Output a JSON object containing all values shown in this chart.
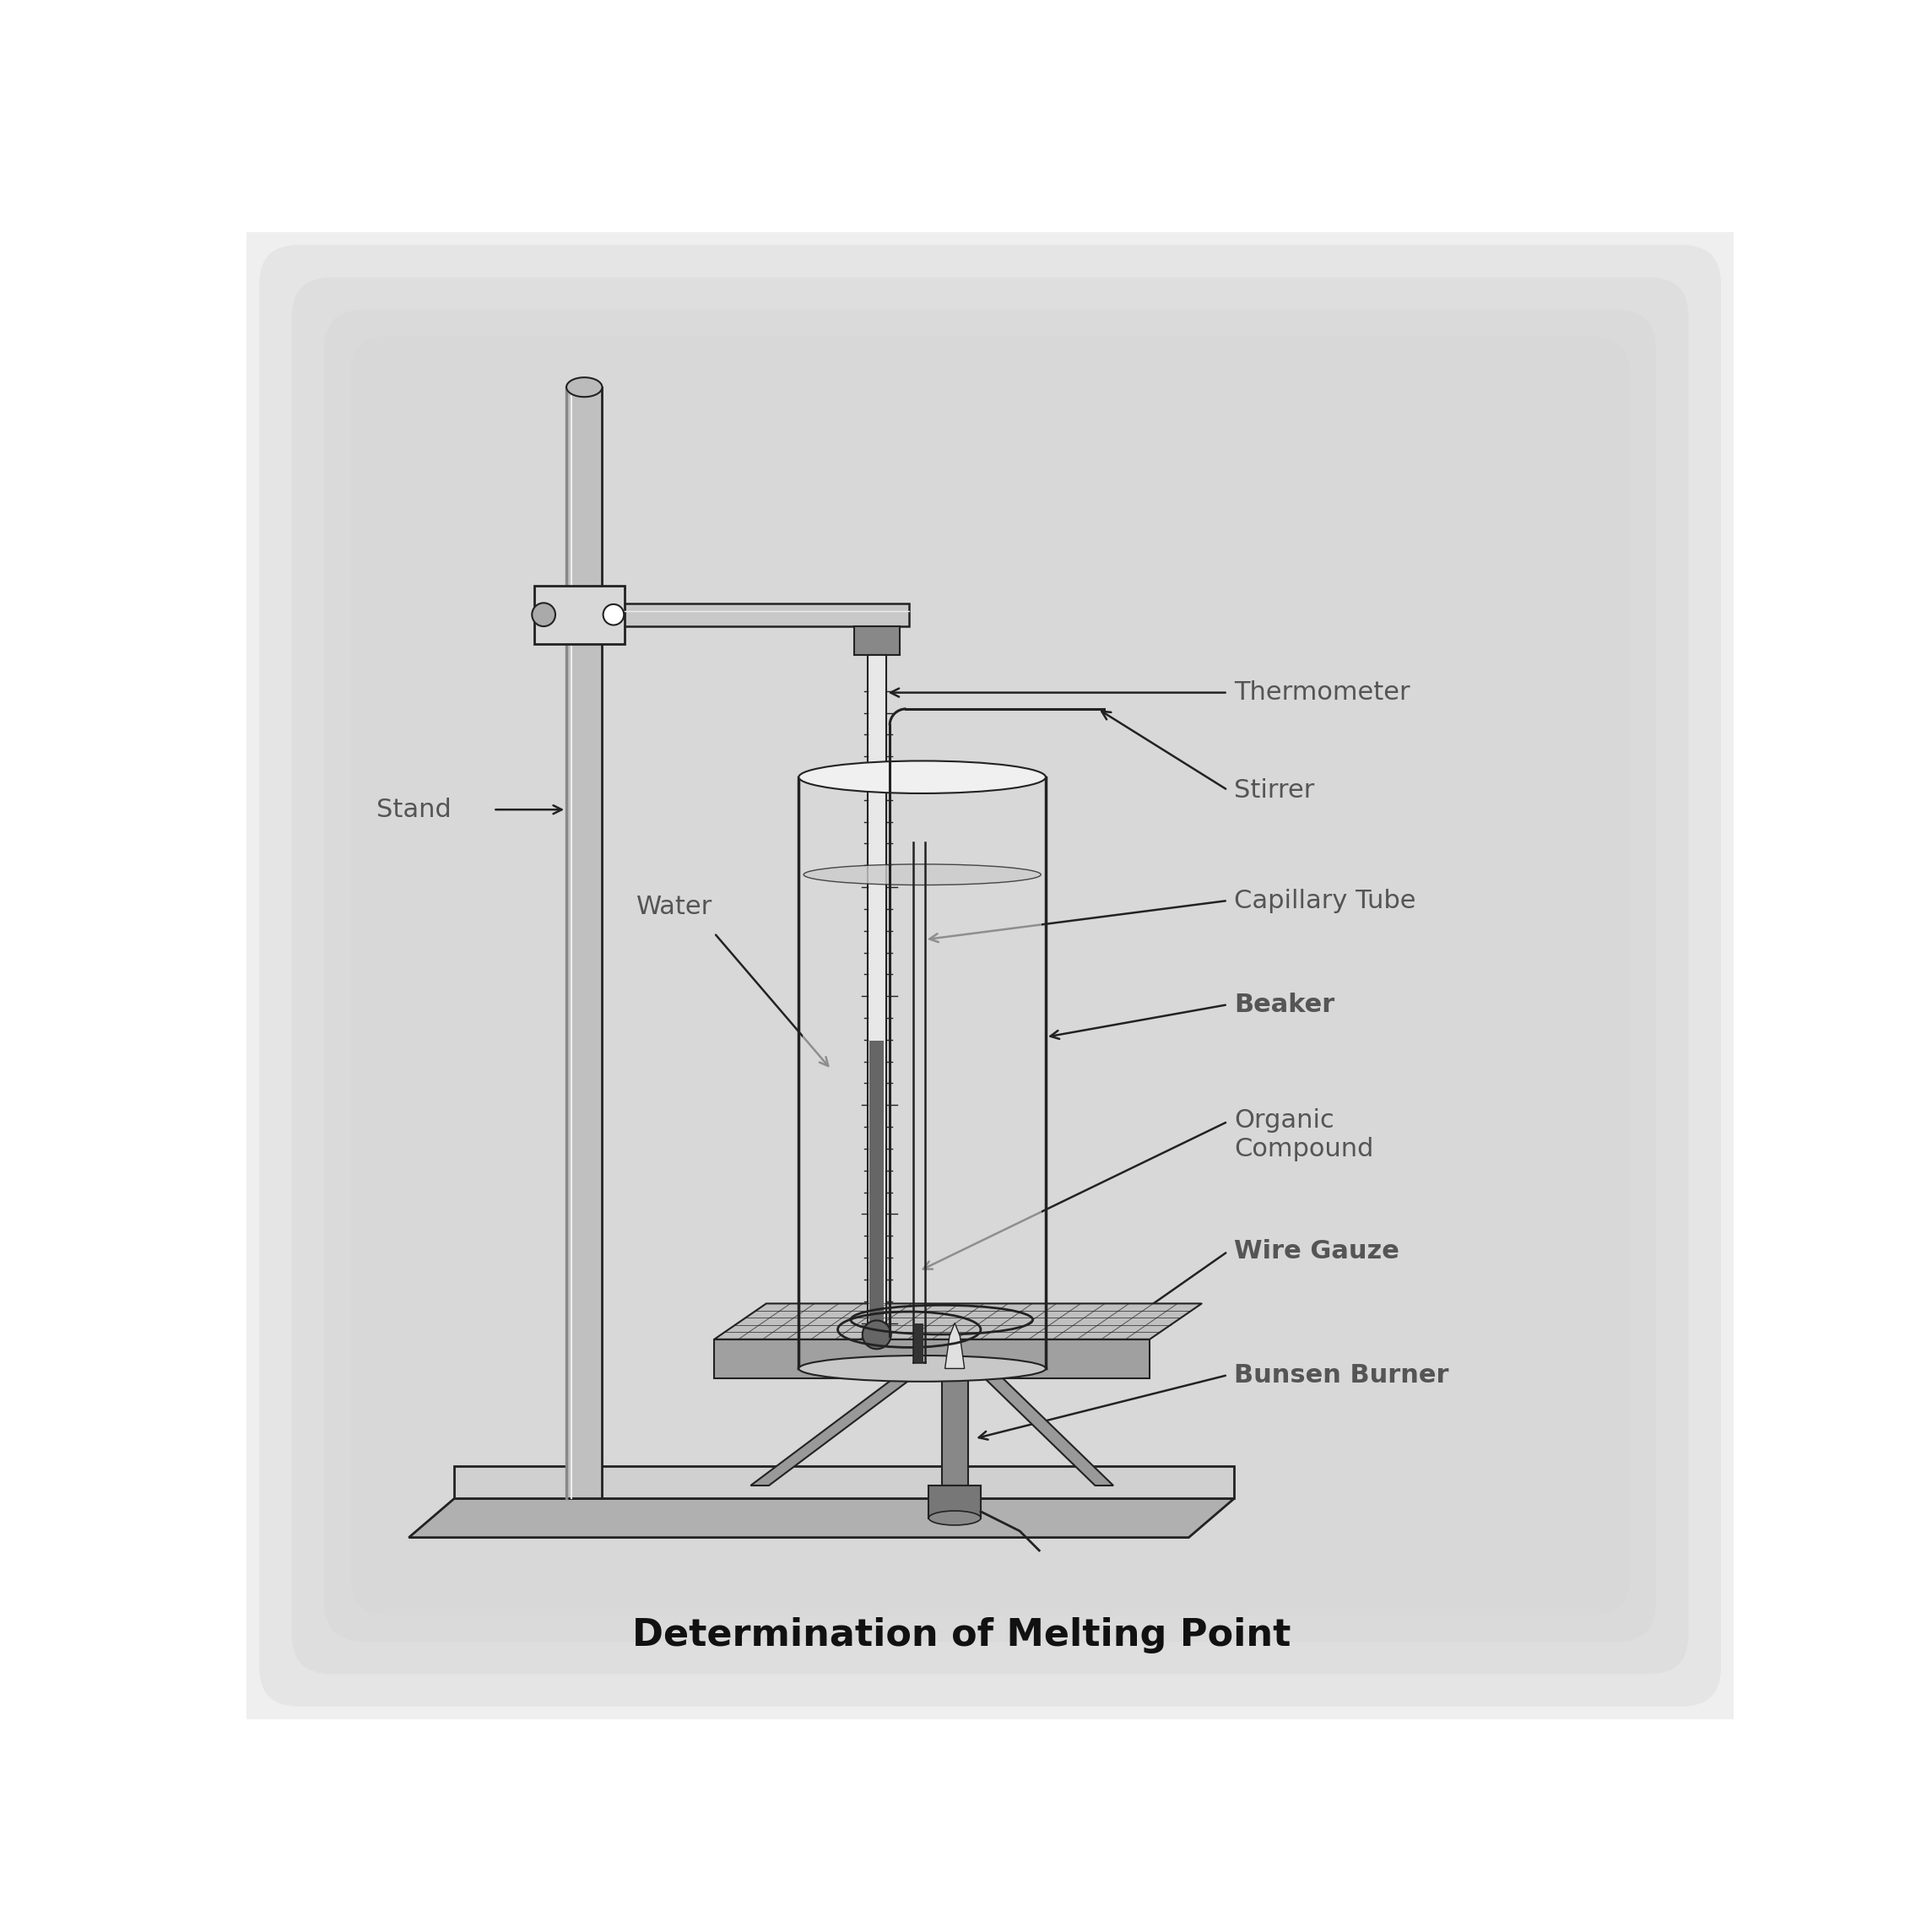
{
  "title": "Determination of Melting Point",
  "title_fontsize": 32,
  "title_fontweight": "bold",
  "labels": {
    "thermometer": "Thermometer",
    "stirrer": "Stirrer",
    "capillary_tube": "Capillary Tube",
    "beaker": "Beaker",
    "organic_compound": "Organic\nCompound",
    "wire_gauze": "Wire Gauze",
    "bunsen_burner": "Bunsen Burner",
    "water": "Water",
    "stand": "Stand"
  },
  "label_fontsize": 22,
  "label_color": "#555555",
  "dark_color": "#222222",
  "mid_gray": "#888888",
  "light_gray": "#cccccc",
  "background_color": "#ffffff",
  "vignette_color": "#c8c8c8"
}
